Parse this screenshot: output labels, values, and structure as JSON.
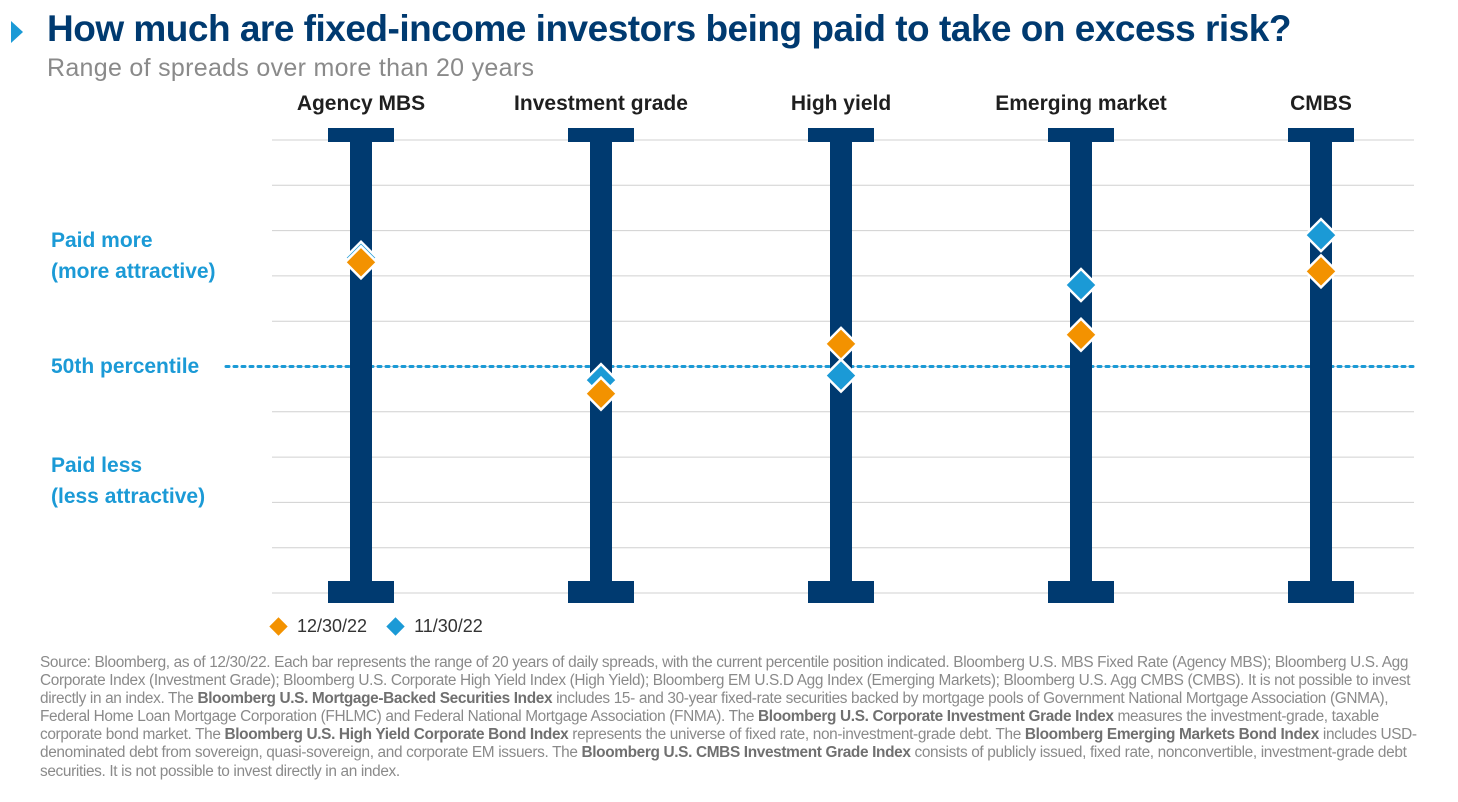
{
  "header": {
    "title": "How much are fixed-income investors being paid to take on excess risk?",
    "subtitle": "Range of spreads over more than 20 years"
  },
  "side_labels": {
    "paid_more_line1": "Paid more",
    "paid_more_line2": "(more attractive)",
    "median": "50th percentile",
    "paid_less_line1": "Paid less",
    "paid_less_line2": "(less attractive)"
  },
  "legend": {
    "dec": "12/30/22",
    "nov": "11/30/22"
  },
  "colors": {
    "bar": "#003a70",
    "dec_marker": "#f39200",
    "nov_marker": "#1b9ad6",
    "grid": "#d0d0d0",
    "median_line": "#1b9ad6",
    "title": "#003a70"
  },
  "chart_data": {
    "type": "range",
    "title": "How much are fixed-income investors being paid to take on excess risk?",
    "subtitle": "Range of spreads over more than 20 years",
    "categories": [
      "Agency MBS",
      "Investment grade",
      "High yield",
      "Emerging market",
      "CMBS"
    ],
    "ylim": [
      0,
      100
    ],
    "y_reference": 50,
    "series": [
      {
        "name": "12/30/22",
        "values": [
          73,
          44,
          55,
          57,
          71
        ]
      },
      {
        "name": "11/30/22",
        "values": [
          74,
          47,
          48,
          68,
          79
        ]
      }
    ],
    "grid": true,
    "legend_position": "bottom-left"
  },
  "footnote": {
    "p1": "Source: Bloomberg, as of 12/30/22. Each bar represents the range of 20 years of daily spreads, with the current percentile position indicated. Bloomberg U.S. MBS Fixed Rate (Agency MBS); Bloomberg U.S. Agg Corporate Index (Investment Grade); Bloomberg U.S. Corporate High Yield Index (High Yield); Bloomberg EM U.S.D Agg Index (Emerging Markets); Bloomberg U.S. Agg CMBS (CMBS). It is not possible to invest directly in an index. The ",
    "b1": "Bloomberg U.S. Mortgage-Backed Securities Index",
    "p2": " includes 15- and 30-year fixed-rate securities backed by mortgage pools of Government National Mortgage Association (GNMA), Federal Home Loan Mortgage Corporation (FHLMC) and Federal National Mortgage Association (FNMA). The ",
    "b2": "Bloomberg U.S. Corporate Investment Grade Index",
    "p3": " measures the investment-grade, taxable corporate bond market. The ",
    "b3": "Bloomberg U.S. High Yield Corporate Bond Index",
    "p4": " represents the universe of fixed rate, non-investment-grade debt. The ",
    "b4": "Bloomberg Emerging Markets Bond Index",
    "p5": " includes USD-denominated debt from sovereign, quasi-sovereign, and corporate EM issuers. The ",
    "b5": "Bloomberg U.S. CMBS Investment Grade Index",
    "p6": " consists of publicly issued, fixed rate, nonconvertible, investment-grade debt securities. It is not possible to invest directly in an index."
  }
}
